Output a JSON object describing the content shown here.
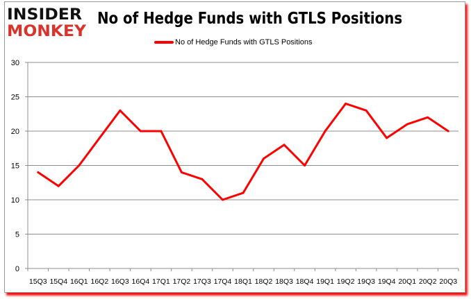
{
  "brand": {
    "line1": "INSIDER",
    "line2": "MONKEY",
    "color1": "#111111",
    "color2": "#d9332b"
  },
  "chart_data": {
    "type": "line",
    "title": "No of Hedge Funds with GTLS Positions",
    "categories": [
      "15Q3",
      "15Q4",
      "16Q1",
      "16Q2",
      "16Q3",
      "16Q4",
      "17Q1",
      "17Q2",
      "17Q3",
      "17Q4",
      "18Q1",
      "18Q2",
      "18Q3",
      "18Q4",
      "19Q1",
      "19Q2",
      "19Q3",
      "19Q4",
      "20Q1",
      "20Q2",
      "20Q3"
    ],
    "series": [
      {
        "name": "No of Hedge Funds with GTLS Positions",
        "color": "#ff0000",
        "values": [
          14,
          12,
          15,
          19,
          23,
          20,
          20,
          14,
          13,
          10,
          11,
          16,
          18,
          15,
          20,
          24,
          23,
          19,
          21,
          22,
          20
        ]
      }
    ],
    "ylim": [
      0,
      30
    ],
    "yticks": [
      0,
      5,
      10,
      15,
      20,
      25,
      30
    ],
    "grid": true,
    "legend": "top-center"
  }
}
